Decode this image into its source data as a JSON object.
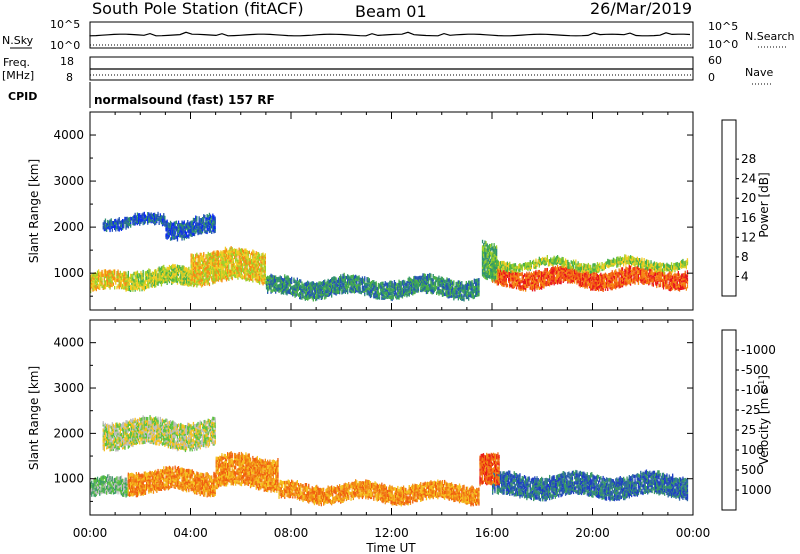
{
  "header": {
    "station": "South Pole Station (fitACF)",
    "beam": "Beam 01",
    "date": "26/Mar/2019"
  },
  "top_panels": {
    "nsky_label": "N.Sky",
    "nsky_ticks": [
      "10^5",
      "10^0"
    ],
    "nsearch_label": "N.Search",
    "nsearch_ticks": [
      "10^5",
      "10^0"
    ],
    "freq_label": "Freq.",
    "freq_unit": "[MHz]",
    "freq_ticks": [
      "18",
      "8"
    ],
    "nave_label": "Nave",
    "nave_ticks": [
      "60",
      "0"
    ],
    "cpid_label": "CPID",
    "cpid_value": "normalsound (fast) 157 RF"
  },
  "chart_data": [
    {
      "type": "heatmap",
      "title": "",
      "xlabel": "Time UT",
      "ylabel": "Slant Range [km]",
      "xlim": [
        0,
        24
      ],
      "ylim": [
        200,
        4500
      ],
      "x_tick_labels": [
        "00:00",
        "04:00",
        "08:00",
        "12:00",
        "16:00",
        "20:00",
        "00:00"
      ],
      "y_ticks": [
        1000,
        2000,
        3000,
        4000
      ],
      "colorbar": {
        "label": "Power [dB]",
        "ticks": [
          "4",
          "8",
          "12",
          "16",
          "20",
          "24",
          "28"
        ],
        "colors": [
          "#0a2bf0",
          "#2454b4",
          "#2f8f70",
          "#49b049",
          "#9ed02a",
          "#f2cc22",
          "#f68a15",
          "#f25a12",
          "#e8141c"
        ]
      },
      "regions": [
        {
          "t0": 0.0,
          "t1": 1.5,
          "r0": 600,
          "r1": 1000,
          "level": 5
        },
        {
          "t0": 1.5,
          "t1": 4.0,
          "r0": 700,
          "r1": 1100,
          "level": 4
        },
        {
          "t0": 4.0,
          "t1": 7.0,
          "r0": 800,
          "r1": 1500,
          "level": 5
        },
        {
          "t0": 0.5,
          "t1": 3.0,
          "r0": 2000,
          "r1": 2250,
          "level": 1
        },
        {
          "t0": 3.0,
          "t1": 5.0,
          "r0": 1800,
          "r1": 2200,
          "level": 1
        },
        {
          "t0": 7.0,
          "t1": 15.5,
          "r0": 500,
          "r1": 900,
          "level": 2
        },
        {
          "t0": 16.0,
          "t1": 23.8,
          "r0": 700,
          "r1": 1100,
          "level": 7
        },
        {
          "t0": 16.0,
          "t1": 23.8,
          "r0": 1100,
          "r1": 1300,
          "level": 4
        },
        {
          "t0": 15.6,
          "t1": 16.2,
          "r0": 900,
          "r1": 1700,
          "level": 3
        }
      ]
    },
    {
      "type": "heatmap",
      "title": "",
      "xlabel": "Time UT",
      "ylabel": "Slant Range [km]",
      "xlim": [
        0,
        24
      ],
      "ylim": [
        200,
        4500
      ],
      "x_tick_labels": [
        "00:00",
        "04:00",
        "08:00",
        "12:00",
        "16:00",
        "20:00",
        "00:00"
      ],
      "y_ticks": [
        1000,
        2000,
        3000,
        4000
      ],
      "colorbar": {
        "label": "Velocity [m s^-1]",
        "ticks": [
          "1000",
          "500",
          "100",
          "25",
          "-25",
          "-100",
          "-500",
          "-1000"
        ],
        "colors": [
          "#1f3fc2",
          "#2e6ba0",
          "#3a9a65",
          "#5bc240",
          "#bdbdbd",
          "#f5c020",
          "#f28a15",
          "#f0600f",
          "#e81a17"
        ]
      },
      "regions": [
        {
          "t0": 0.0,
          "t1": 1.5,
          "r0": 600,
          "r1": 1000,
          "level": 3
        },
        {
          "t0": 1.5,
          "t1": 5.0,
          "r0": 700,
          "r1": 1200,
          "level": 6
        },
        {
          "t0": 5.0,
          "t1": 7.5,
          "r0": 800,
          "r1": 1500,
          "level": 6
        },
        {
          "t0": 0.5,
          "t1": 5.0,
          "r0": 1700,
          "r1": 2300,
          "level": 4
        },
        {
          "t0": 7.5,
          "t1": 15.5,
          "r0": 500,
          "r1": 900,
          "level": 6
        },
        {
          "t0": 16.0,
          "t1": 23.8,
          "r0": 600,
          "r1": 1100,
          "level": 1
        },
        {
          "t0": 15.5,
          "t1": 16.3,
          "r0": 800,
          "r1": 1500,
          "level": 7
        }
      ]
    }
  ]
}
